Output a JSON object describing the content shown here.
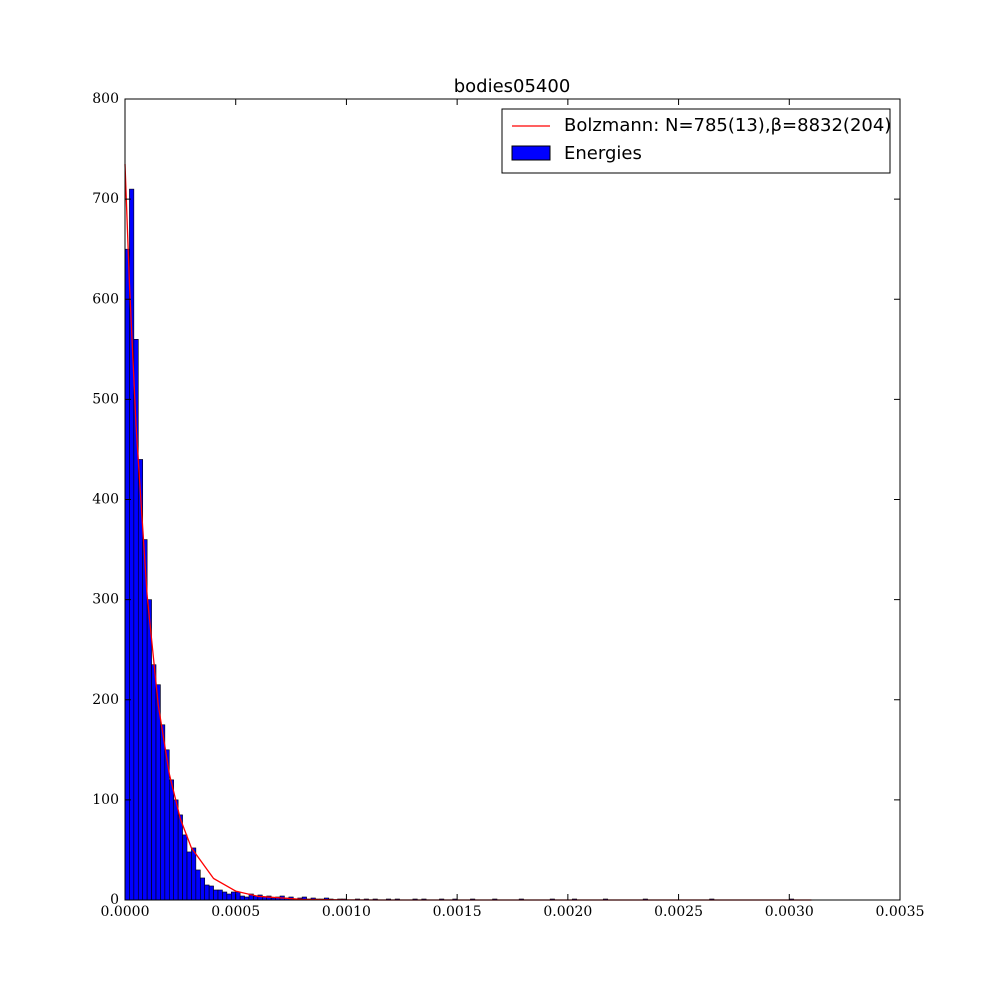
{
  "chart_data": [
    {
      "type": "histogram",
      "title": "bodies05400",
      "name": "Energies",
      "color": "#0000ff",
      "bins": [
        0,
        2e-05,
        4e-05,
        6e-05,
        8e-05,
        0.0001,
        0.00012,
        0.00014,
        0.00016,
        0.00018,
        0.0002,
        0.00022,
        0.00024,
        0.00026,
        0.00028,
        0.0003,
        0.00032,
        0.00034,
        0.00036,
        0.00038,
        0.0004,
        0.00042,
        0.00044,
        0.00046,
        0.00048,
        0.0005,
        0.00052,
        0.00054,
        0.00056,
        0.00058,
        0.0006,
        0.00062,
        0.00064,
        0.00066,
        0.00068,
        0.0007,
        0.00072,
        0.00074,
        0.00076,
        0.00078,
        0.0008,
        0.00082,
        0.00084,
        0.00086,
        0.00088,
        0.0009,
        0.00092,
        0.00094,
        0.00096,
        0.00098,
        0.001,
        0.00102,
        0.00104,
        0.00106,
        0.00108,
        0.0011,
        0.00112,
        0.00114,
        0.00116,
        0.00118,
        0.0012,
        0.00122,
        0.00124,
        0.00126,
        0.00128,
        0.0013,
        0.00132,
        0.00134,
        0.00136,
        0.00138,
        0.0014,
        0.00142,
        0.00144,
        0.00146,
        0.00148,
        0.0015,
        0.00152,
        0.00154,
        0.00156,
        0.00158,
        0.0016,
        0.00162,
        0.00164,
        0.00166,
        0.00168,
        0.0017,
        0.00172,
        0.00174,
        0.00176,
        0.00178,
        0.0018,
        0.00182,
        0.00184,
        0.00186,
        0.00188,
        0.0019,
        0.00192,
        0.00194,
        0.00196,
        0.00198,
        0.002,
        0.00202,
        0.00204,
        0.00206,
        0.00208,
        0.0021,
        0.00212,
        0.00214,
        0.00216,
        0.00218,
        0.0022,
        0.00222,
        0.00224,
        0.00226,
        0.00228,
        0.0023,
        0.00232,
        0.00234,
        0.00236,
        0.00238,
        0.0024,
        0.00242,
        0.00244,
        0.00246,
        0.00248,
        0.0025,
        0.00252,
        0.00254,
        0.00256,
        0.00258,
        0.0026,
        0.00262,
        0.00264,
        0.00266,
        0.00268,
        0.0027,
        0.00272,
        0.00274,
        0.00276,
        0.00278,
        0.0028,
        0.00282,
        0.00284,
        0.00286,
        0.00288,
        0.0029,
        0.00292,
        0.00294,
        0.00296,
        0.00298,
        0.003,
        0.00302,
        0.00304,
        0.00306
      ],
      "counts": [
        650,
        710,
        560,
        440,
        360,
        300,
        235,
        215,
        175,
        150,
        120,
        100,
        85,
        65,
        48,
        52,
        30,
        22,
        15,
        14,
        10,
        10,
        8,
        6,
        8,
        8,
        4,
        3,
        6,
        4,
        5,
        3,
        4,
        2,
        3,
        4,
        2,
        3,
        1,
        2,
        3,
        1,
        2,
        1,
        1,
        2,
        1,
        0,
        1,
        1,
        0,
        0,
        1,
        0,
        1,
        0,
        1,
        0,
        0,
        1,
        0,
        1,
        0,
        0,
        0,
        1,
        0,
        1,
        0,
        0,
        0,
        1,
        0,
        0,
        1,
        0,
        0,
        0,
        1,
        0,
        0,
        0,
        0,
        1,
        0,
        0,
        0,
        0,
        0,
        1,
        0,
        0,
        0,
        0,
        0,
        0,
        1,
        0,
        0,
        0,
        0,
        1,
        0,
        0,
        0,
        0,
        0,
        0,
        1,
        0,
        0,
        0,
        0,
        0,
        0,
        0,
        0,
        1,
        0,
        0,
        0,
        0,
        0,
        0,
        0,
        0,
        0,
        0,
        0,
        0,
        0,
        0,
        1,
        0,
        0,
        0,
        0,
        0,
        0,
        0,
        0,
        0,
        0,
        0,
        0,
        0,
        0,
        0,
        0,
        0,
        1,
        0,
        0
      ],
      "xlim": [
        0,
        0.0035
      ],
      "ylim": [
        0,
        800
      ],
      "xticks": [
        {
          "value": 0,
          "label": "0.0000"
        },
        {
          "value": 0.0005,
          "label": "0.0005"
        },
        {
          "value": 0.001,
          "label": "0.0010"
        },
        {
          "value": 0.0015,
          "label": "0.0015"
        },
        {
          "value": 0.002,
          "label": "0.0020"
        },
        {
          "value": 0.0025,
          "label": "0.0025"
        },
        {
          "value": 0.003,
          "label": "0.0030"
        },
        {
          "value": 0.0035,
          "label": "0.0035"
        }
      ],
      "yticks": [
        0,
        100,
        200,
        300,
        400,
        500,
        600,
        700,
        800
      ],
      "legend": "upper right"
    },
    {
      "type": "line",
      "name": "Bolzmann: N=785(13),β=8832(204)",
      "color": "#ff0000",
      "x": [
        0,
        2e-05,
        5e-05,
        0.0001,
        0.00015,
        0.0002,
        0.00025,
        0.0003,
        0.0004,
        0.0005,
        0.0006,
        0.0008,
        0.001,
        0.0012,
        0.0015,
        0.002,
        0.0025,
        0.003,
        0.0031
      ],
      "values": [
        735,
        616,
        473,
        304,
        195,
        126,
        81,
        52,
        21.5,
        8.9,
        3.7,
        0.6,
        0.1,
        0,
        0,
        0,
        0,
        0,
        0
      ]
    }
  ]
}
